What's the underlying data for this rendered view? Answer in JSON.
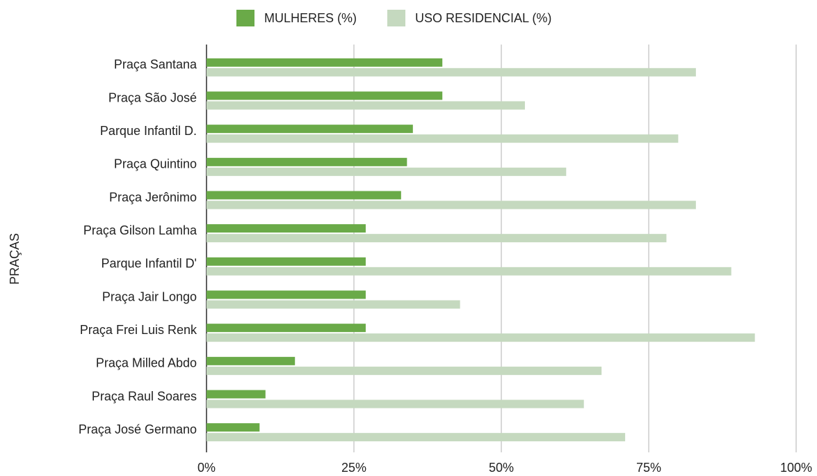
{
  "chart_data": {
    "type": "hbar",
    "y_axis_label": "PRAÇAS",
    "categories": [
      "Praça Santana",
      "Praça São José",
      "Parque Infantil D.",
      "Praça Quintino",
      "Praça Jerônimo",
      "Praça Gilson Lamha",
      "Parque Infantil D'",
      "Praça Jair Longo",
      "Praça Frei Luis Renk",
      "Praça Milled Abdo",
      "Praça Raul Soares",
      "Praça José Germano"
    ],
    "series": [
      {
        "name": "MULHERES (%)",
        "color": "#6aaa48",
        "values": [
          40,
          40,
          35,
          34,
          33,
          27,
          27,
          27,
          27,
          15,
          10,
          9
        ]
      },
      {
        "name": "USO RESIDENCIAL (%)",
        "color": "#c5d9bf",
        "values": [
          83,
          54,
          80,
          61,
          83,
          78,
          89,
          43,
          93,
          67,
          64,
          71
        ]
      }
    ],
    "xlim": [
      0,
      100
    ],
    "xticks": [
      {
        "value": 0,
        "label": "0%"
      },
      {
        "value": 25,
        "label": "25%"
      },
      {
        "value": 50,
        "label": "50%"
      },
      {
        "value": 75,
        "label": "75%"
      },
      {
        "value": 100,
        "label": "100%"
      }
    ],
    "grid": true,
    "legend": "top"
  }
}
